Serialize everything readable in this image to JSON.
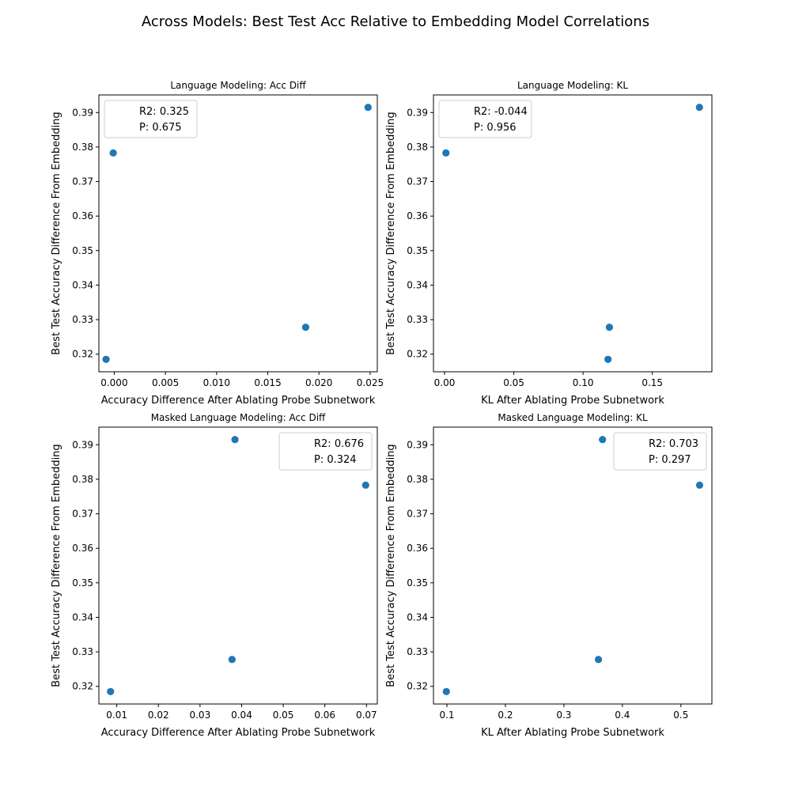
{
  "figure": {
    "suptitle": "Across Models: Best Test Acc Relative to Embedding Model Correlations",
    "marker_color": "#1f77b4"
  },
  "chart_data": [
    {
      "type": "scatter",
      "title": "Language Modeling: Acc Diff",
      "xlabel": "Accuracy Difference After Ablating Probe Subnetwork",
      "ylabel": "Best Test Accuracy Difference From Embedding",
      "x": [
        -0.0001,
        0.0187,
        0.0248,
        -0.0008
      ],
      "y": [
        0.3783,
        0.3278,
        0.3915,
        0.3185
      ],
      "xlim": [
        -0.0015,
        0.0257
      ],
      "ylim": [
        0.3149,
        0.3951
      ],
      "xticks": [
        0.0,
        0.005,
        0.01,
        0.015,
        0.02,
        0.025
      ],
      "xtick_labels": [
        "0.000",
        "0.005",
        "0.010",
        "0.015",
        "0.020",
        "0.025"
      ],
      "yticks": [
        0.32,
        0.33,
        0.34,
        0.35,
        0.36,
        0.37,
        0.38,
        0.39
      ],
      "ytick_labels": [
        "0.32",
        "0.33",
        "0.34",
        "0.35",
        "0.36",
        "0.37",
        "0.38",
        "0.39"
      ],
      "legend": {
        "placement": "upper-left",
        "entries": [
          "R2: 0.325",
          "P: 0.675"
        ]
      }
    },
    {
      "type": "scatter",
      "title": "Language Modeling: KL",
      "xlabel": "KL After Ablating Probe Subnetwork",
      "ylabel": "Best Test Accuracy Difference From Embedding",
      "x": [
        0.001,
        0.119,
        0.184,
        0.118
      ],
      "y": [
        0.3783,
        0.3278,
        0.3915,
        0.3185
      ],
      "xlim": [
        -0.008,
        0.193
      ],
      "ylim": [
        0.3149,
        0.3951
      ],
      "xticks": [
        0.0,
        0.05,
        0.1,
        0.15
      ],
      "xtick_labels": [
        "0.00",
        "0.05",
        "0.10",
        "0.15"
      ],
      "yticks": [
        0.32,
        0.33,
        0.34,
        0.35,
        0.36,
        0.37,
        0.38,
        0.39
      ],
      "ytick_labels": [
        "0.32",
        "0.33",
        "0.34",
        "0.35",
        "0.36",
        "0.37",
        "0.38",
        "0.39"
      ],
      "legend": {
        "placement": "upper-left",
        "entries": [
          "R2: -0.044",
          "P: 0.956"
        ]
      }
    },
    {
      "type": "scatter",
      "title": "Masked Language Modeling: Acc Diff",
      "xlabel": "Accuracy Difference After Ablating Probe Subnetwork",
      "ylabel": "Best Test Accuracy Difference From Embedding",
      "x": [
        0.0698,
        0.0377,
        0.0384,
        0.0085
      ],
      "y": [
        0.3783,
        0.3278,
        0.3915,
        0.3185
      ],
      "xlim": [
        0.0057,
        0.0726
      ],
      "ylim": [
        0.3149,
        0.3951
      ],
      "xticks": [
        0.01,
        0.02,
        0.03,
        0.04,
        0.05,
        0.06,
        0.07
      ],
      "xtick_labels": [
        "0.01",
        "0.02",
        "0.03",
        "0.04",
        "0.05",
        "0.06",
        "0.07"
      ],
      "yticks": [
        0.32,
        0.33,
        0.34,
        0.35,
        0.36,
        0.37,
        0.38,
        0.39
      ],
      "ytick_labels": [
        "0.32",
        "0.33",
        "0.34",
        "0.35",
        "0.36",
        "0.37",
        "0.38",
        "0.39"
      ],
      "legend": {
        "placement": "upper-right",
        "entries": [
          "R2: 0.676",
          "P: 0.324"
        ]
      }
    },
    {
      "type": "scatter",
      "title": "Masked Language Modeling: KL",
      "xlabel": "KL After Ablating Probe Subnetwork",
      "ylabel": "Best Test Accuracy Difference From Embedding",
      "x": [
        0.532,
        0.359,
        0.366,
        0.099
      ],
      "y": [
        0.3783,
        0.3278,
        0.3915,
        0.3185
      ],
      "xlim": [
        0.077,
        0.553
      ],
      "ylim": [
        0.3149,
        0.3951
      ],
      "xticks": [
        0.1,
        0.2,
        0.3,
        0.4,
        0.5
      ],
      "xtick_labels": [
        "0.1",
        "0.2",
        "0.3",
        "0.4",
        "0.5"
      ],
      "yticks": [
        0.32,
        0.33,
        0.34,
        0.35,
        0.36,
        0.37,
        0.38,
        0.39
      ],
      "ytick_labels": [
        "0.32",
        "0.33",
        "0.34",
        "0.35",
        "0.36",
        "0.37",
        "0.38",
        "0.39"
      ],
      "legend": {
        "placement": "upper-right",
        "entries": [
          "R2: 0.703",
          "P: 0.297"
        ]
      }
    }
  ]
}
